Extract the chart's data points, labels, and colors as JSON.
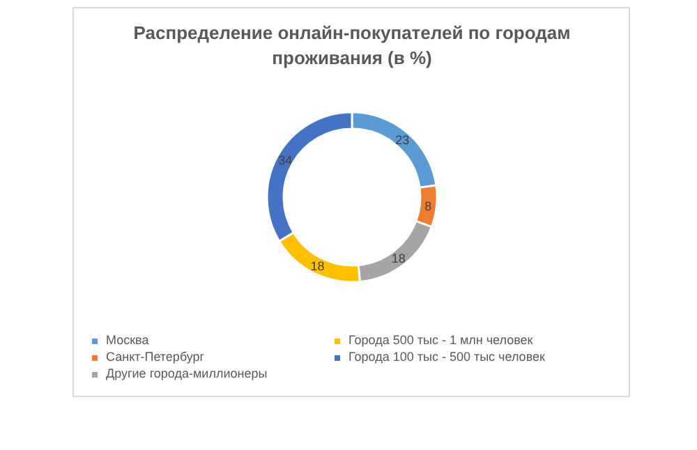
{
  "chart_data": {
    "type": "donut",
    "title": "Распределение онлайн-покупателей по городам проживания (в %)",
    "categories": [
      "Москва",
      "Санкт-Петербург",
      "Другие города-миллионеры",
      "Города 500 тыс - 1 млн человек",
      "Города 100 тыс - 500 тыс человек"
    ],
    "values": [
      23,
      8,
      18,
      18,
      34
    ],
    "colors": [
      "#5b9bd5",
      "#ed7d31",
      "#a5a5a5",
      "#ffc000",
      "#4472c4"
    ],
    "data_labels": true,
    "legend": "bottom"
  }
}
